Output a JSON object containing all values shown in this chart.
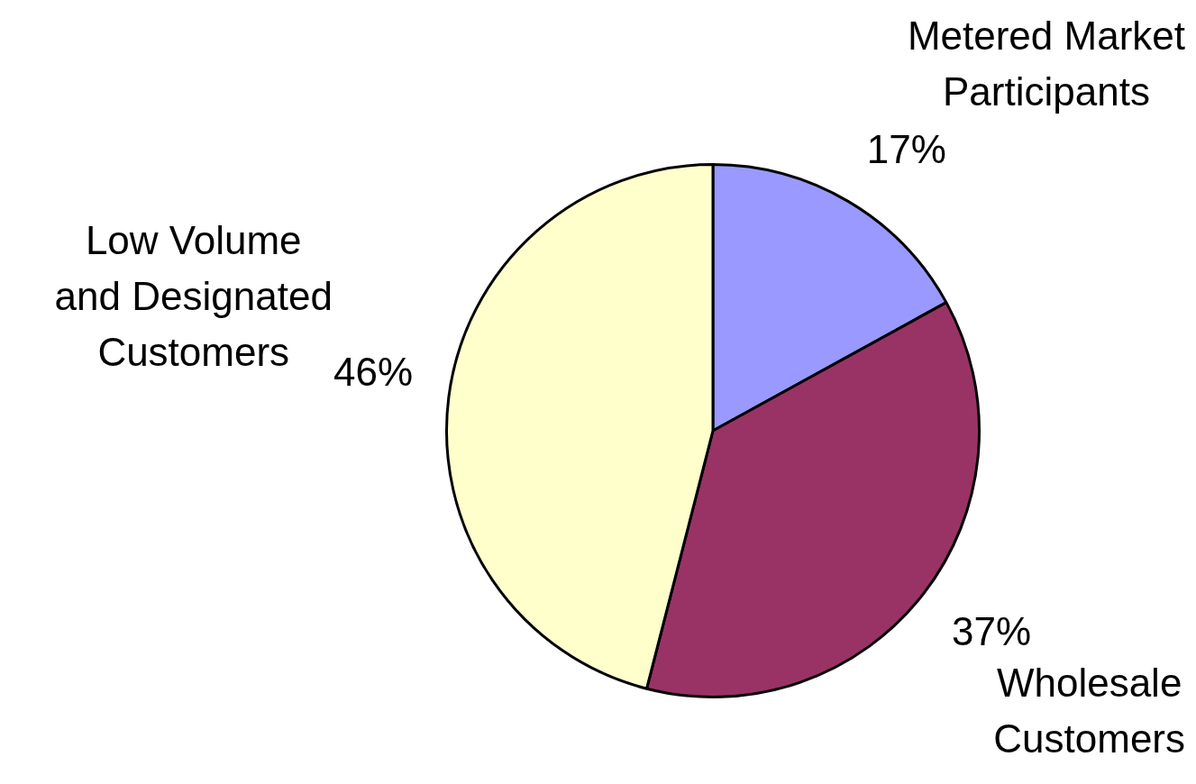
{
  "chart_data": {
    "type": "pie",
    "categories": [
      "Metered Market\nParticipants",
      "Wholesale\nCustomers",
      "Low Volume\nand Designated\nCustomers"
    ],
    "values": [
      17,
      37,
      46
    ],
    "colors": [
      "#9999ff",
      "#993366",
      "#ffffcc"
    ],
    "value_labels": [
      "17%",
      "37%",
      "46%"
    ],
    "legend": false
  }
}
